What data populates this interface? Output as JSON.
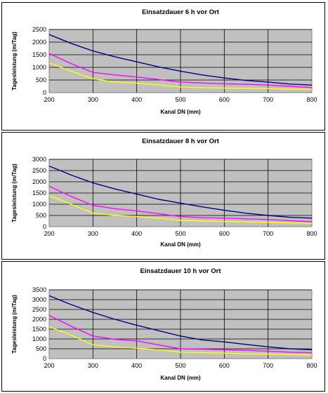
{
  "chart_data": [
    {
      "type": "line",
      "title": "Einsatzdauer 6 h vor Ort",
      "xlabel": "Kanal DN (mm)",
      "ylabel": "Tagesleistung (m/Tag)",
      "x": [
        200,
        250,
        300,
        350,
        400,
        450,
        500,
        550,
        600,
        650,
        700,
        750,
        800
      ],
      "xticks": [
        "200",
        "300",
        "400",
        "500",
        "600",
        "700",
        "800"
      ],
      "yticks": [
        "0",
        "500",
        "1000",
        "1500",
        "2000",
        "2500"
      ],
      "xlim": [
        200,
        800
      ],
      "ylim": [
        0,
        2500
      ],
      "grid": true,
      "series": [
        {
          "color": "#000080",
          "values": [
            2300,
            1950,
            1650,
            1420,
            1220,
            1020,
            850,
            700,
            580,
            480,
            420,
            340,
            300
          ]
        },
        {
          "color": "#ff00ff",
          "values": [
            1550,
            1150,
            800,
            700,
            620,
            520,
            420,
            380,
            350,
            330,
            300,
            250,
            200
          ]
        },
        {
          "color": "#ffff00",
          "values": [
            1180,
            850,
            550,
            420,
            380,
            300,
            220,
            200,
            180,
            170,
            160,
            140,
            130
          ]
        }
      ]
    },
    {
      "type": "line",
      "title": "Einsatzdauer 8 h vor Ort",
      "xlabel": "Kanal DN (mm)",
      "ylabel": "Tagesleistung (m/Tag)",
      "x": [
        200,
        250,
        300,
        350,
        400,
        450,
        500,
        550,
        600,
        650,
        700,
        750,
        800
      ],
      "xticks": [
        "200",
        "300",
        "400",
        "500",
        "600",
        "700",
        "800"
      ],
      "yticks": [
        "0",
        "500",
        "1000",
        "1500",
        "2000",
        "2500",
        "3000"
      ],
      "xlim": [
        200,
        800
      ],
      "ylim": [
        0,
        3000
      ],
      "grid": true,
      "series": [
        {
          "color": "#000080",
          "values": [
            2700,
            2300,
            1950,
            1680,
            1450,
            1220,
            1050,
            880,
            730,
            600,
            500,
            420,
            380
          ]
        },
        {
          "color": "#ff00ff",
          "values": [
            1800,
            1350,
            950,
            800,
            700,
            580,
            450,
            400,
            380,
            350,
            320,
            270,
            220
          ]
        },
        {
          "color": "#ffff00",
          "values": [
            1380,
            1000,
            600,
            500,
            450,
            380,
            280,
            250,
            230,
            210,
            200,
            170,
            150
          ]
        }
      ]
    },
    {
      "type": "line",
      "title": "Einsatzdauer 10 h vor Ort",
      "xlabel": "Kanal DN (mm)",
      "ylabel": "Tagesleistung (m/Tag)",
      "x": [
        200,
        250,
        300,
        350,
        400,
        450,
        500,
        550,
        600,
        650,
        700,
        750,
        800
      ],
      "xticks": [
        "200",
        "300",
        "400",
        "500",
        "600",
        "700",
        "800"
      ],
      "yticks": [
        "0",
        "500",
        "1000",
        "1500",
        "2000",
        "2500",
        "3000",
        "3500"
      ],
      "xlim": [
        200,
        800
      ],
      "ylim": [
        0,
        3500
      ],
      "grid": true,
      "series": [
        {
          "color": "#000080",
          "values": [
            3200,
            2750,
            2350,
            2000,
            1700,
            1420,
            1150,
            950,
            850,
            720,
            600,
            500,
            450
          ]
        },
        {
          "color": "#ff00ff",
          "values": [
            2200,
            1650,
            1150,
            980,
            900,
            700,
            500,
            480,
            450,
            420,
            380,
            330,
            300
          ]
        },
        {
          "color": "#ffff00",
          "values": [
            1620,
            1200,
            700,
            600,
            520,
            450,
            330,
            300,
            280,
            250,
            230,
            200,
            180
          ]
        }
      ]
    }
  ]
}
